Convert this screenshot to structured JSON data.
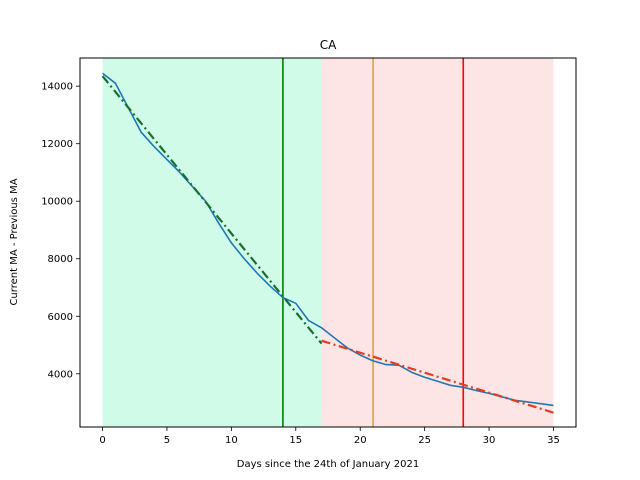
{
  "chart_data": {
    "type": "line",
    "title": "CA",
    "xlabel": "Days since the 24th of January 2021",
    "ylabel": "Current MA - Previous MA",
    "xlim": [
      -1.75,
      36.75
    ],
    "ylim": [
      2150,
      14980
    ],
    "xticks": [
      0,
      5,
      10,
      15,
      20,
      25,
      30,
      35
    ],
    "yticks": [
      4000,
      6000,
      8000,
      10000,
      12000,
      14000
    ],
    "grid": false,
    "legend": "none",
    "shaded_regions": [
      {
        "x_start": 0,
        "x_end": 17,
        "color": "#d0fbe8"
      },
      {
        "x_start": 17,
        "x_end": 35,
        "color": "#fee5e5"
      }
    ],
    "vertical_lines": [
      {
        "x": 14,
        "color": "#008000"
      },
      {
        "x": 21,
        "color": "#e0a040"
      },
      {
        "x": 28,
        "color": "#ff0000"
      }
    ],
    "series": [
      {
        "style": "solid",
        "color": "#1f77b4",
        "x": [
          0,
          1,
          2,
          3,
          4,
          5,
          6,
          7,
          8,
          9,
          10,
          11,
          12,
          13,
          14,
          15,
          16,
          17,
          18,
          19,
          20,
          21,
          22,
          23,
          24,
          25,
          26,
          27,
          28,
          29,
          30,
          31,
          32,
          33,
          34,
          35
        ],
        "values": [
          14450,
          14100,
          13250,
          12400,
          11900,
          11450,
          11000,
          10500,
          10000,
          9250,
          8550,
          8000,
          7500,
          7050,
          6650,
          6450,
          5850,
          5600,
          5250,
          4900,
          4650,
          4450,
          4320,
          4300,
          4050,
          3880,
          3740,
          3600,
          3530,
          3420,
          3320,
          3200,
          3080,
          3020,
          2960,
          2900
        ]
      },
      {
        "style": "dashdot",
        "color": "#1a6e2e",
        "x": [
          0,
          17
        ],
        "values": [
          14350,
          5050
        ]
      },
      {
        "style": "dashdot",
        "color": "#e03d20",
        "x": [
          17,
          35
        ],
        "values": [
          5150,
          2650
        ]
      }
    ]
  }
}
